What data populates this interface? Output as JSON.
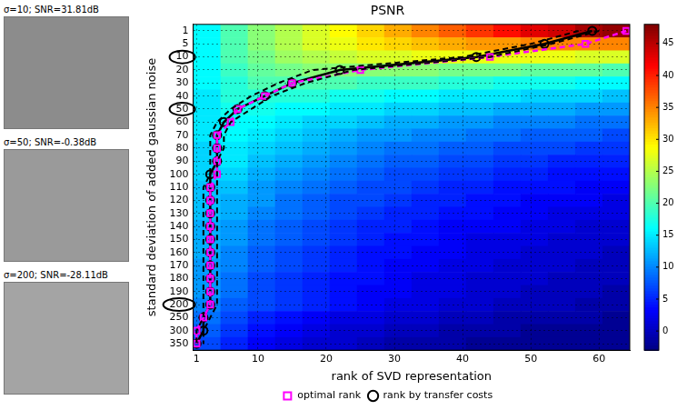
{
  "chart_data": {
    "type": "heatmap",
    "title": "PSNR",
    "x_label": "rank of SVD representation",
    "y_label": "standard deviation of added gaussian noise",
    "categories": [
      1,
      5,
      10,
      20,
      30,
      40,
      50,
      60,
      70,
      80,
      90,
      100,
      110,
      120,
      130,
      140,
      150,
      160,
      170,
      180,
      190,
      200,
      250,
      300,
      350
    ],
    "x_edges": [
      0.5,
      4.5,
      8.5,
      12.5,
      16.5,
      20.5,
      24.5,
      28.5,
      32.5,
      36.5,
      40.5,
      44.5,
      48.5,
      52.5,
      56.5,
      60.5,
      64.5
    ],
    "values": [
      [
        16,
        20,
        23,
        25,
        27,
        29,
        31,
        33,
        35,
        37,
        39,
        41,
        43,
        44,
        46,
        47
      ],
      [
        16,
        20,
        23,
        25,
        27,
        28,
        30,
        31,
        32,
        33,
        34,
        34,
        35,
        35,
        35,
        35
      ],
      [
        16,
        20,
        22,
        24,
        25,
        26,
        27,
        27,
        28,
        28,
        28,
        28,
        28,
        28,
        27,
        27
      ],
      [
        16,
        19,
        21,
        22,
        23,
        23,
        23,
        23,
        23,
        22,
        22,
        22,
        21,
        21,
        21,
        20
      ],
      [
        16,
        18,
        20,
        20,
        20,
        20,
        19,
        19,
        19,
        18,
        18,
        17,
        17,
        17,
        16,
        16
      ],
      [
        15,
        18,
        18,
        18,
        18,
        17,
        17,
        16,
        16,
        15,
        15,
        15,
        14,
        14,
        14,
        13
      ],
      [
        15,
        17,
        17,
        16,
        16,
        15,
        15,
        14,
        14,
        13,
        13,
        12,
        12,
        12,
        11,
        11
      ],
      [
        15,
        16,
        16,
        15,
        14,
        14,
        13,
        12,
        12,
        11,
        11,
        10,
        10,
        10,
        9,
        9
      ],
      [
        15,
        16,
        15,
        14,
        13,
        12,
        11,
        11,
        10,
        10,
        9,
        9,
        8,
        8,
        8,
        7
      ],
      [
        14,
        15,
        14,
        13,
        12,
        11,
        10,
        9,
        9,
        8,
        8,
        7,
        7,
        7,
        6,
        6
      ],
      [
        14,
        15,
        13,
        12,
        11,
        10,
        9,
        8,
        8,
        7,
        7,
        6,
        6,
        5,
        5,
        5
      ],
      [
        14,
        14,
        12,
        11,
        10,
        9,
        8,
        7,
        7,
        6,
        6,
        5,
        5,
        4,
        4,
        4
      ],
      [
        13,
        13,
        11,
        10,
        9,
        8,
        7,
        7,
        6,
        5,
        5,
        4,
        4,
        4,
        3,
        3
      ],
      [
        13,
        12,
        11,
        9,
        8,
        7,
        7,
        6,
        5,
        5,
        4,
        4,
        3,
        3,
        3,
        2
      ],
      [
        13,
        12,
        10,
        9,
        8,
        7,
        6,
        5,
        5,
        4,
        4,
        3,
        3,
        2,
        2,
        2
      ],
      [
        12,
        11,
        9,
        8,
        7,
        6,
        5,
        5,
        4,
        3,
        3,
        3,
        2,
        2,
        1,
        1
      ],
      [
        12,
        11,
        9,
        8,
        7,
        6,
        5,
        4,
        4,
        3,
        2,
        2,
        2,
        1,
        1,
        1
      ],
      [
        12,
        10,
        8,
        7,
        6,
        5,
        4,
        4,
        3,
        3,
        2,
        2,
        1,
        1,
        1,
        0
      ],
      [
        11,
        10,
        8,
        7,
        6,
        5,
        4,
        3,
        3,
        2,
        2,
        1,
        1,
        1,
        0,
        0
      ],
      [
        11,
        9,
        7,
        6,
        5,
        4,
        4,
        3,
        2,
        2,
        1,
        1,
        1,
        0,
        0,
        0
      ],
      [
        11,
        9,
        7,
        6,
        5,
        4,
        3,
        3,
        2,
        2,
        1,
        1,
        0,
        0,
        0,
        -1
      ],
      [
        10,
        8,
        7,
        6,
        5,
        4,
        3,
        2,
        2,
        1,
        1,
        0,
        0,
        0,
        -1,
        -1
      ],
      [
        9,
        7,
        5,
        4,
        3,
        2,
        2,
        1,
        1,
        0,
        0,
        -1,
        -1,
        -1,
        -1,
        -2
      ],
      [
        8,
        6,
        4,
        3,
        2,
        1,
        1,
        0,
        0,
        -1,
        -1,
        -1,
        -2,
        -2,
        -2,
        -2
      ],
      [
        7,
        5,
        3,
        2,
        1,
        1,
        0,
        -1,
        -1,
        -1,
        -2,
        -2,
        -2,
        -2,
        -2,
        -2
      ]
    ],
    "xlim": [
      0.5,
      64.5
    ],
    "xticks": [
      1,
      10,
      20,
      30,
      40,
      50,
      60
    ],
    "colorbar": {
      "range": [
        -3,
        48
      ],
      "ticks": [
        0,
        5,
        10,
        15,
        20,
        25,
        30,
        35,
        40,
        45
      ]
    },
    "circled": [
      10,
      50,
      200
    ],
    "grid": true,
    "legend": "bottom",
    "series": [
      {
        "name": "optimal rank",
        "color": "#ff00ff",
        "marker": "square",
        "line_style": "dashed",
        "values": [
          64,
          58,
          44,
          25,
          15,
          11,
          7,
          6,
          4,
          4,
          4,
          4,
          3,
          3,
          3,
          3,
          3,
          3,
          3,
          3,
          3,
          3,
          2,
          1,
          1
        ]
      },
      {
        "name": "rank by transfer costs",
        "color": "#000000",
        "marker": "circle",
        "line_style": "solid",
        "values": [
          59,
          52,
          42,
          22,
          15,
          11,
          7,
          5,
          4,
          4,
          4,
          3,
          3,
          3,
          3,
          3,
          3,
          3,
          3,
          3,
          3,
          3,
          2,
          2,
          1
        ],
        "band": {
          "line_style": "dashed",
          "lower": [
            57,
            50,
            40,
            18,
            13,
            9,
            6,
            4,
            3,
            3,
            3,
            3,
            2,
            2,
            2,
            2,
            2,
            2,
            2,
            2,
            2,
            2,
            2,
            1,
            1
          ],
          "upper": [
            60,
            53,
            44,
            24,
            17,
            12,
            9,
            6,
            5,
            5,
            4,
            4,
            4,
            4,
            4,
            4,
            4,
            4,
            4,
            4,
            4,
            4,
            3,
            2,
            2
          ]
        }
      }
    ]
  },
  "panels": [
    {
      "caption": "σ=10; SNR=31.81dB"
    },
    {
      "caption": "σ=50; SNR=-0.38dB"
    },
    {
      "caption": "σ=200; SNR=-28.11dB"
    }
  ]
}
